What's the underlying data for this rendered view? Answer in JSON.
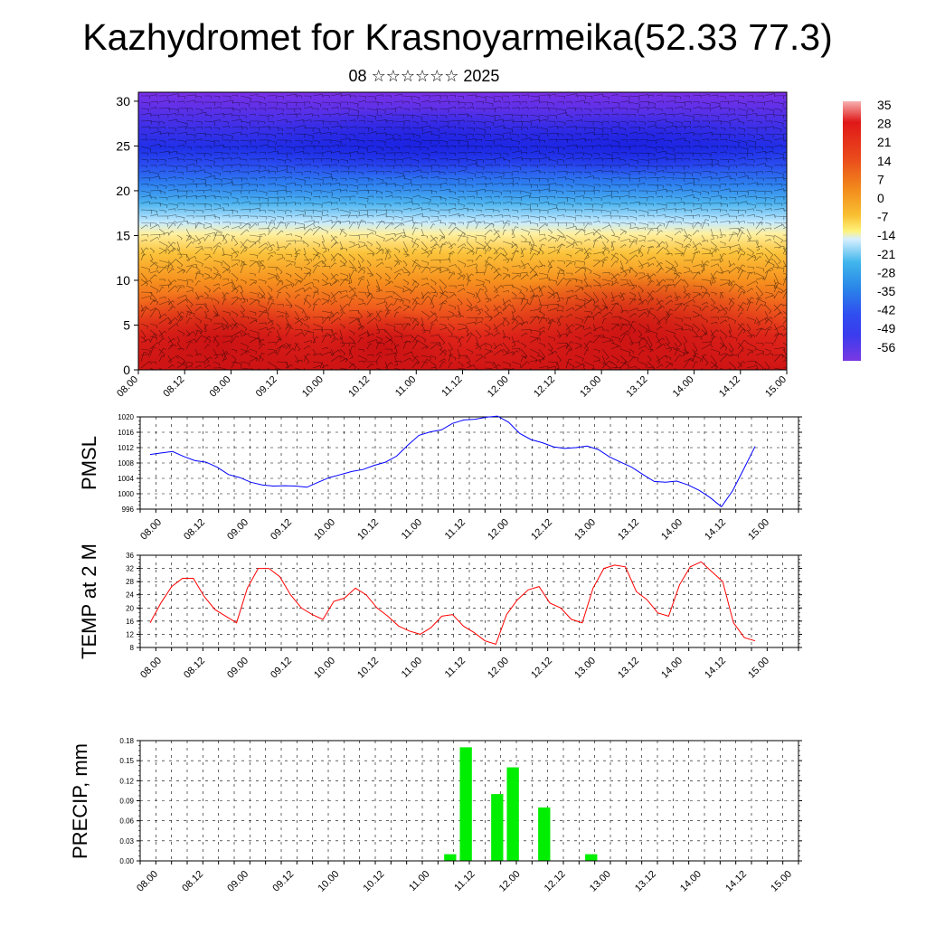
{
  "title": "Kazhydromet for Krasnoyarmeika(52.33 77.3)",
  "subtitle": "08 ☆☆☆☆☆☆ 2025",
  "chart_data": [
    {
      "type": "heatmap",
      "name": "cross-section",
      "x_tick_labels": [
        "08.00",
        "08.12",
        "09.00",
        "09.12",
        "10.00",
        "10.12",
        "11.00",
        "11.12",
        "12.00",
        "12.12",
        "13.00",
        "13.12",
        "14.00",
        "14.12",
        "15.00"
      ],
      "y_ticks": [
        0,
        5,
        10,
        15,
        20,
        25,
        30
      ],
      "ylim": [
        0,
        31
      ],
      "colorbar_labels": [
        "35",
        "28",
        "21",
        "14",
        "7",
        "0",
        "-7",
        "-14",
        "-21",
        "-28",
        "-35",
        "-42",
        "-49",
        "-56"
      ],
      "colorbar_colors": [
        "#f4a0a0",
        "#e41a1c",
        "#e8451a",
        "#f07a1a",
        "#f7a81d",
        "#fbd04a",
        "#fff47a",
        "#bfe3f5",
        "#3fb7ec",
        "#2a8fe8",
        "#2f62f0",
        "#3b3df0",
        "#5a35e8",
        "#7a3ae0"
      ],
      "note_vectors": "wind barbs overlay"
    },
    {
      "type": "line",
      "ylabel": "PMSL",
      "y_ticks": [
        996,
        1000,
        1004,
        1008,
        1012,
        1016,
        1020
      ],
      "ylim": [
        996,
        1020
      ],
      "x_tick_labels": [
        "08.00",
        "08.12",
        "09.00",
        "09.12",
        "10.00",
        "10.12",
        "11.00",
        "11.12",
        "12.00",
        "12.12",
        "13.00",
        "13.12",
        "14.00",
        "14.12",
        "15.00"
      ],
      "color": "#0000ff",
      "values": [
        1010.2,
        1010.6,
        1011.0,
        1009.7,
        1008.6,
        1008.2,
        1006.9,
        1005.0,
        1004.2,
        1003.0,
        1002.3,
        1002.0,
        1002.1,
        1002.0,
        1001.7,
        1003.0,
        1004.2,
        1005.0,
        1005.8,
        1006.3,
        1007.4,
        1008.2,
        1009.8,
        1012.6,
        1015.2,
        1016.1,
        1016.6,
        1018.3,
        1019.2,
        1019.4,
        1019.9,
        1020.2,
        1018.6,
        1015.7,
        1014.1,
        1013.3,
        1012.2,
        1011.8,
        1012.0,
        1012.4,
        1011.5,
        1009.6,
        1008.2,
        1006.9,
        1005.0,
        1003.2,
        1003.0,
        1003.3,
        1002.3,
        1000.9,
        999.0,
        996.6,
        1000.8,
        1006.5,
        1012.3
      ]
    },
    {
      "type": "line",
      "ylabel": "TEMP at 2 M",
      "y_ticks": [
        8,
        12,
        16,
        20,
        24,
        28,
        32,
        36
      ],
      "ylim": [
        8,
        36
      ],
      "x_tick_labels": [
        "08.00",
        "08.12",
        "09.00",
        "09.12",
        "10.00",
        "10.12",
        "11.00",
        "11.12",
        "12.00",
        "12.12",
        "13.00",
        "13.12",
        "14.00",
        "14.12",
        "15.00"
      ],
      "color": "#ff0000",
      "values": [
        15.5,
        21.5,
        26.5,
        29.0,
        29.0,
        23.5,
        19.5,
        17.5,
        15.5,
        26.0,
        32.0,
        32.0,
        29.5,
        24.0,
        20.0,
        18.0,
        16.5,
        22.0,
        23.0,
        26.0,
        24.0,
        20.0,
        17.5,
        14.5,
        13.0,
        12.0,
        14.0,
        17.5,
        18.0,
        14.5,
        12.5,
        10.0,
        9.0,
        18.0,
        22.5,
        25.5,
        26.5,
        21.5,
        20.0,
        16.5,
        15.5,
        26.0,
        32.0,
        33.0,
        32.5,
        25.0,
        22.5,
        18.5,
        17.5,
        27.0,
        32.5,
        34.0,
        31.0,
        28.0,
        15.5,
        11.0,
        10.0
      ]
    },
    {
      "type": "bar",
      "ylabel": "PRECIP, mm",
      "y_ticks": [
        "0.00",
        "0.03",
        "0.06",
        "0.09",
        "0.12",
        "0.15",
        "0.18"
      ],
      "ylim": [
        0,
        0.18
      ],
      "x_tick_labels": [
        "08.00",
        "08.12",
        "09.00",
        "09.12",
        "10.00",
        "10.12",
        "11.00",
        "11.12",
        "12.00",
        "12.12",
        "13.00",
        "13.12",
        "14.00",
        "14.12",
        "15.00"
      ],
      "color": "#00ee00",
      "bars": [
        {
          "t": 19,
          "value": 0.01
        },
        {
          "t": 20,
          "value": 0.17
        },
        {
          "t": 22,
          "value": 0.1
        },
        {
          "t": 23,
          "value": 0.14
        },
        {
          "t": 25,
          "value": 0.08
        },
        {
          "t": 28,
          "value": 0.01
        }
      ]
    }
  ]
}
